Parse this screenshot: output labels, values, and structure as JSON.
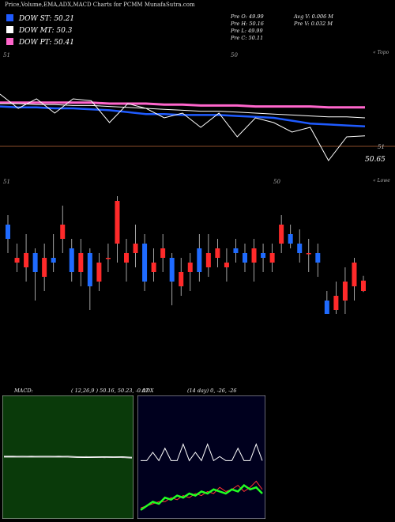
{
  "title": "Price,Volume,EMA,ADX,MACD Charts for PCMM MunafaSutra.com",
  "legend": [
    {
      "label": "DOW ST: 50.21",
      "color": "#1f5bff"
    },
    {
      "label": "DOW MT: 50.3",
      "color": "#ffffff"
    },
    {
      "label": "DOW PT: 50.41",
      "color": "#ff66cc"
    }
  ],
  "stats_left": [
    "Pre  O: 49.99",
    "Pre  H: 50.16",
    "Pre  L: 49.99",
    "Pre  C: 50.11"
  ],
  "stats_right": [
    "Avg V: 0.006  M",
    "Pre  V: 0.032  M"
  ],
  "price_panel": {
    "tick_left": "51",
    "tick_mid": "50",
    "tick_right": "51",
    "last_price": "50.65",
    "corner_label": "« Topo"
  },
  "candle_panel": {
    "tick_left": "51",
    "tick_mid": "50",
    "corner_label": "« Lowe"
  },
  "macd": {
    "label": "MACD:",
    "params": "( 12,26,9 ) 50.16, 50.23, -0.07"
  },
  "adx": {
    "label": "ADX",
    "params": "(14  day) 0, -26, -26"
  },
  "colors": {
    "ema_st": "#1f5bff",
    "ema_mt": "#ffffff",
    "ema_pt": "#ff66cc",
    "up": "#ff2a2a",
    "down": "#1f6bff",
    "macd_bg": "#0a3a0a",
    "adx_bg": "#00001e"
  },
  "chart_data": [
    {
      "type": "line",
      "title": "Price with EMA",
      "series": [
        {
          "name": "DOW ST",
          "values": [
            50.42,
            50.41,
            50.41,
            50.4,
            50.4,
            50.39,
            50.38,
            50.36,
            50.34,
            50.34,
            50.33,
            50.33,
            50.33,
            50.32,
            50.31,
            50.3,
            50.27,
            50.24,
            50.23,
            50.22,
            50.21
          ]
        },
        {
          "name": "DOW MT",
          "values": [
            50.45,
            50.45,
            50.44,
            50.44,
            50.43,
            50.43,
            50.42,
            50.41,
            50.4,
            50.39,
            50.38,
            50.37,
            50.37,
            50.36,
            50.35,
            50.34,
            50.33,
            50.32,
            50.31,
            50.31,
            50.3
          ]
        },
        {
          "name": "DOW PT",
          "values": [
            50.46,
            50.46,
            50.46,
            50.46,
            50.46,
            50.46,
            50.45,
            50.45,
            50.45,
            50.44,
            50.44,
            50.43,
            50.43,
            50.43,
            50.42,
            50.42,
            50.42,
            50.42,
            50.41,
            50.41,
            50.41
          ]
        }
      ],
      "price": [
        50.55,
        50.4,
        50.5,
        50.35,
        50.5,
        50.48,
        50.25,
        50.45,
        50.4,
        50.3,
        50.35,
        50.2,
        50.35,
        50.1,
        50.3,
        50.25,
        50.15,
        50.2,
        49.85,
        50.1,
        50.11
      ]
    },
    {
      "type": "bar",
      "title": "Candles",
      "candles": [
        {
          "o": 50.7,
          "c": 50.55,
          "h": 50.8,
          "l": 50.4
        },
        {
          "o": 50.3,
          "c": 50.35,
          "h": 50.5,
          "l": 50.2
        },
        {
          "o": 50.25,
          "c": 50.4,
          "h": 50.6,
          "l": 50.1
        },
        {
          "o": 50.4,
          "c": 50.2,
          "h": 50.45,
          "l": 49.9
        },
        {
          "o": 50.15,
          "c": 50.35,
          "h": 50.5,
          "l": 50.0
        },
        {
          "o": 50.35,
          "c": 50.3,
          "h": 50.6,
          "l": 50.2
        },
        {
          "o": 50.55,
          "c": 50.7,
          "h": 50.9,
          "l": 50.4
        },
        {
          "o": 50.45,
          "c": 50.2,
          "h": 50.55,
          "l": 50.1
        },
        {
          "o": 50.2,
          "c": 50.4,
          "h": 50.55,
          "l": 50.05
        },
        {
          "o": 50.4,
          "c": 50.05,
          "h": 50.45,
          "l": 49.8
        },
        {
          "o": 50.1,
          "c": 50.3,
          "h": 50.4,
          "l": 50.0
        },
        {
          "o": 50.35,
          "c": 50.35,
          "h": 50.5,
          "l": 50.2
        },
        {
          "o": 50.5,
          "c": 50.95,
          "h": 51.0,
          "l": 50.3
        },
        {
          "o": 50.3,
          "c": 50.4,
          "h": 50.55,
          "l": 50.1
        },
        {
          "o": 50.4,
          "c": 50.5,
          "h": 50.7,
          "l": 50.25
        },
        {
          "o": 50.5,
          "c": 50.1,
          "h": 50.6,
          "l": 50.0
        },
        {
          "o": 50.2,
          "c": 50.3,
          "h": 50.45,
          "l": 50.1
        },
        {
          "o": 50.35,
          "c": 50.45,
          "h": 50.6,
          "l": 50.2
        },
        {
          "o": 50.35,
          "c": 50.1,
          "h": 50.4,
          "l": 49.85
        },
        {
          "o": 50.05,
          "c": 50.2,
          "h": 50.35,
          "l": 49.95
        },
        {
          "o": 50.2,
          "c": 50.3,
          "h": 50.4,
          "l": 50.0
        },
        {
          "o": 50.45,
          "c": 50.2,
          "h": 50.6,
          "l": 50.1
        },
        {
          "o": 50.25,
          "c": 50.4,
          "h": 50.6,
          "l": 50.15
        },
        {
          "o": 50.35,
          "c": 50.45,
          "h": 50.55,
          "l": 50.25
        },
        {
          "o": 50.25,
          "c": 50.3,
          "h": 50.45,
          "l": 50.1
        },
        {
          "o": 50.45,
          "c": 50.4,
          "h": 50.55,
          "l": 50.3
        },
        {
          "o": 50.4,
          "c": 50.3,
          "h": 50.5,
          "l": 50.2
        },
        {
          "o": 50.3,
          "c": 50.45,
          "h": 50.55,
          "l": 50.1
        },
        {
          "o": 50.4,
          "c": 50.35,
          "h": 50.5,
          "l": 50.2
        },
        {
          "o": 50.3,
          "c": 50.4,
          "h": 50.5,
          "l": 50.2
        },
        {
          "o": 50.5,
          "c": 50.7,
          "h": 50.8,
          "l": 50.4
        },
        {
          "o": 50.6,
          "c": 50.5,
          "h": 50.7,
          "l": 50.45
        },
        {
          "o": 50.5,
          "c": 50.4,
          "h": 50.65,
          "l": 50.3
        },
        {
          "o": 50.4,
          "c": 50.4,
          "h": 50.55,
          "l": 50.2
        },
        {
          "o": 50.4,
          "c": 50.3,
          "h": 50.5,
          "l": 50.15
        },
        {
          "o": 49.9,
          "c": 49.7,
          "h": 50.0,
          "l": 49.5
        },
        {
          "o": 49.8,
          "c": 49.95,
          "h": 50.1,
          "l": 49.7
        },
        {
          "o": 49.9,
          "c": 50.1,
          "h": 50.25,
          "l": 49.7
        },
        {
          "o": 50.05,
          "c": 50.3,
          "h": 50.35,
          "l": 49.9
        },
        {
          "o": 50.0,
          "c": 50.11,
          "h": 50.16,
          "l": 49.99
        }
      ]
    },
    {
      "type": "line",
      "title": "MACD",
      "series": [
        {
          "name": "MACD",
          "values": [
            0.02,
            0.02,
            0.01,
            0.02,
            0.01,
            0.01,
            0.02,
            0.01,
            0.0,
            0.01,
            0.0,
            -0.01,
            0.0,
            -0.01,
            0.0
          ]
        },
        {
          "name": "Signal",
          "values": [
            0.01,
            0.01,
            0.01,
            0.01,
            0.01,
            0.01,
            0.01,
            0.01,
            0.0,
            0.0,
            0.0,
            0.0,
            0.0,
            0.0,
            -0.01
          ]
        }
      ]
    },
    {
      "type": "line",
      "title": "ADX",
      "series": [
        {
          "name": "ADX",
          "values": [
            26,
            26,
            30,
            26,
            32,
            26,
            26,
            34,
            26,
            30,
            26,
            34,
            26,
            28,
            26,
            26,
            32,
            26,
            26,
            34,
            26
          ]
        },
        {
          "name": "+DI",
          "values": [
            2,
            4,
            6,
            5,
            8,
            7,
            9,
            8,
            10,
            9,
            11,
            10,
            12,
            11,
            10,
            12,
            11,
            14,
            12,
            13,
            10
          ]
        },
        {
          "name": "-DI",
          "values": [
            3,
            4,
            5,
            6,
            6,
            8,
            7,
            9,
            8,
            10,
            9,
            11,
            10,
            13,
            11,
            12,
            14,
            11,
            13,
            16,
            12
          ]
        }
      ]
    }
  ]
}
